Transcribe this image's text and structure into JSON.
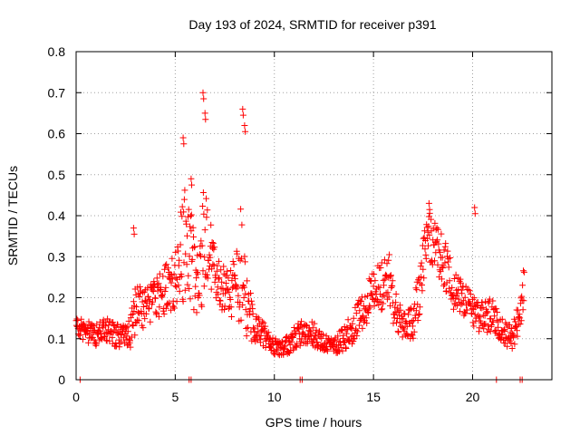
{
  "chart_data": {
    "type": "scatter",
    "title": "Day 193 of 2024, SRMTID for receiver p391",
    "xlabel": "GPS time / hours",
    "ylabel": "SRMTID / TECUs",
    "xlim": [
      0,
      24
    ],
    "ylim": [
      0,
      0.8
    ],
    "xticks": [
      0,
      5,
      10,
      15,
      20
    ],
    "xtick_labels": [
      "0",
      "5",
      "10",
      "15",
      "20"
    ],
    "yticks": [
      0,
      0.1,
      0.2,
      0.3,
      0.4,
      0.5,
      0.6,
      0.7,
      0.8
    ],
    "ytick_labels": [
      "0",
      "0.1",
      "0.2",
      "0.3",
      "0.4",
      "0.5",
      "0.6",
      "0.7",
      "0.8"
    ],
    "grid": true,
    "marker": "+",
    "color": "#ff0000",
    "trend": {
      "x": [
        0,
        0.5,
        1,
        1.5,
        2,
        2.5,
        2.8,
        3,
        3.5,
        4,
        4.5,
        5,
        5.2,
        5.5,
        5.8,
        6,
        6.3,
        6.5,
        6.8,
        7,
        7.5,
        8,
        8.3,
        8.6,
        9,
        9.5,
        10,
        10.5,
        11,
        11.5,
        12,
        12.5,
        13,
        13.5,
        14,
        14.5,
        15,
        15.5,
        15.8,
        16,
        16.5,
        17,
        17.3,
        17.6,
        18,
        18.5,
        19,
        19.5,
        20,
        20.5,
        21,
        21.5,
        22,
        22.3,
        22.6
      ],
      "y": [
        0.13,
        0.12,
        0.11,
        0.12,
        0.11,
        0.1,
        0.13,
        0.17,
        0.18,
        0.2,
        0.22,
        0.24,
        0.3,
        0.33,
        0.3,
        0.26,
        0.3,
        0.35,
        0.28,
        0.25,
        0.22,
        0.22,
        0.28,
        0.18,
        0.13,
        0.11,
        0.08,
        0.08,
        0.1,
        0.12,
        0.11,
        0.09,
        0.08,
        0.1,
        0.13,
        0.17,
        0.22,
        0.23,
        0.25,
        0.18,
        0.13,
        0.14,
        0.22,
        0.33,
        0.35,
        0.3,
        0.22,
        0.2,
        0.17,
        0.15,
        0.16,
        0.12,
        0.1,
        0.15,
        0.22
      ],
      "spread": [
        0.03,
        0.03,
        0.03,
        0.03,
        0.03,
        0.03,
        0.05,
        0.06,
        0.05,
        0.05,
        0.06,
        0.07,
        0.12,
        0.14,
        0.12,
        0.1,
        0.14,
        0.16,
        0.1,
        0.08,
        0.06,
        0.07,
        0.14,
        0.08,
        0.04,
        0.03,
        0.02,
        0.02,
        0.03,
        0.03,
        0.03,
        0.02,
        0.02,
        0.03,
        0.04,
        0.05,
        0.05,
        0.06,
        0.06,
        0.05,
        0.03,
        0.04,
        0.07,
        0.06,
        0.07,
        0.07,
        0.05,
        0.04,
        0.04,
        0.04,
        0.04,
        0.03,
        0.03,
        0.04,
        0.06
      ]
    },
    "peaks": [
      {
        "x": 2.9,
        "y": 0.37
      },
      {
        "x": 5.4,
        "y": 0.59
      },
      {
        "x": 6.4,
        "y": 0.7
      },
      {
        "x": 6.5,
        "y": 0.65
      },
      {
        "x": 8.4,
        "y": 0.66
      },
      {
        "x": 8.5,
        "y": 0.62
      },
      {
        "x": 5.8,
        "y": 0.49
      },
      {
        "x": 17.8,
        "y": 0.43
      },
      {
        "x": 20.1,
        "y": 0.42
      }
    ],
    "zero_points_x": [
      0.2,
      5.7,
      5.8,
      11.3,
      11.4,
      21.2,
      22.4,
      22.5
    ],
    "sample_interval_hours": 0.02
  }
}
